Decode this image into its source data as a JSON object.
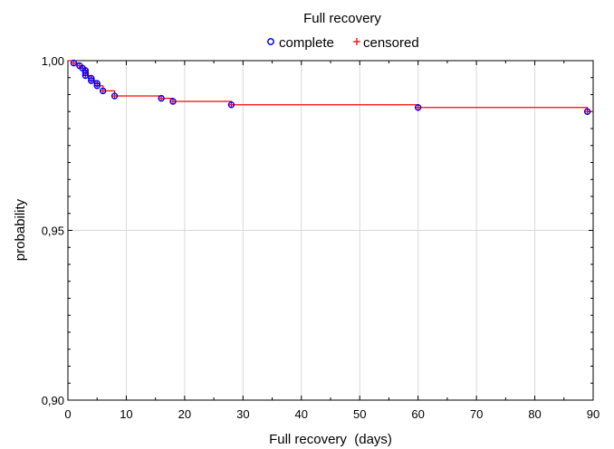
{
  "chart_data": {
    "type": "line",
    "title": "Full recovery",
    "xlabel": "Full recovery  (days)",
    "ylabel": "probability",
    "xlim": [
      0,
      90
    ],
    "ylim": [
      0.9,
      1.0
    ],
    "x_ticks": [
      0,
      10,
      20,
      30,
      40,
      50,
      60,
      70,
      80,
      90
    ],
    "x_tick_labels": [
      "0",
      "10",
      "20",
      "30",
      "40",
      "50",
      "60",
      "70",
      "80",
      "90"
    ],
    "y_ticks": [
      0.9,
      0.95,
      1.0
    ],
    "y_tick_labels": [
      "0,90",
      "0,95",
      "1,00"
    ],
    "grid": true,
    "legend_position": "top-center",
    "legend": [
      {
        "label": "complete",
        "marker": "circle",
        "color": "#0000ff"
      },
      {
        "label": "censored",
        "marker": "plus",
        "color": "#ff0000"
      }
    ],
    "line_color": "#ff0000",
    "series": [
      {
        "name": "complete",
        "x": [
          1,
          2,
          2.5,
          3,
          3,
          3,
          4,
          4,
          5,
          5,
          6,
          8,
          16,
          18,
          28,
          60,
          89
        ],
        "y": [
          0.9993,
          0.9985,
          0.9978,
          0.9971,
          0.9964,
          0.9956,
          0.9948,
          0.9941,
          0.9933,
          0.9926,
          0.9911,
          0.9896,
          0.9889,
          0.988,
          0.987,
          0.9862,
          0.985
        ]
      },
      {
        "name": "censored",
        "x": [
          1,
          2,
          2.5,
          3,
          3,
          3,
          4,
          4,
          5,
          5,
          6,
          8,
          16,
          18,
          28,
          60,
          89
        ],
        "y": [
          0.9993,
          0.9985,
          0.9978,
          0.9971,
          0.9964,
          0.9956,
          0.9948,
          0.9941,
          0.9933,
          0.9926,
          0.9911,
          0.9896,
          0.9889,
          0.988,
          0.987,
          0.9862,
          0.985
        ]
      }
    ],
    "step_curve": {
      "x": [
        0,
        1,
        2,
        2.5,
        3,
        3.2,
        3.5,
        4,
        4.5,
        5,
        5.5,
        6,
        8,
        16,
        18,
        28,
        60,
        89,
        90
      ],
      "y": [
        1.0,
        0.9993,
        0.9985,
        0.9978,
        0.9971,
        0.9964,
        0.9956,
        0.9948,
        0.9941,
        0.9933,
        0.9926,
        0.9911,
        0.9896,
        0.9889,
        0.988,
        0.987,
        0.9862,
        0.985,
        0.985
      ]
    }
  }
}
